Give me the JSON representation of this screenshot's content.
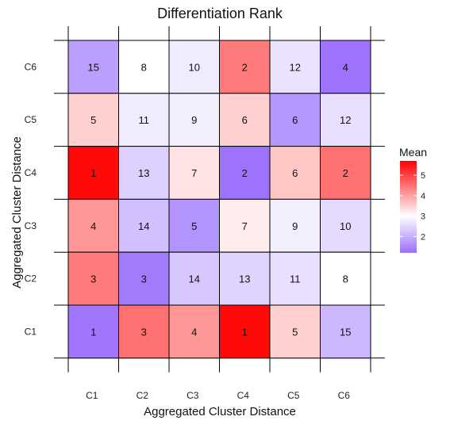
{
  "chart_data": {
    "type": "heatmap",
    "title": "Differentiation Rank",
    "xlabel": "Aggregated Cluster Distance",
    "ylabel": "Aggregated Cluster Distance",
    "x_categories": [
      "C1",
      "C2",
      "C3",
      "C4",
      "C5",
      "C6"
    ],
    "y_categories": [
      "C1",
      "C2",
      "C3",
      "C4",
      "C5",
      "C6"
    ],
    "cells": [
      {
        "x": "C1",
        "y": "C6",
        "label": "15",
        "mean": 1.8
      },
      {
        "x": "C2",
        "y": "C6",
        "label": "8",
        "mean": 3.0
      },
      {
        "x": "C3",
        "y": "C6",
        "label": "10",
        "mean": 2.75
      },
      {
        "x": "C4",
        "y": "C6",
        "label": "2",
        "mean": 4.4
      },
      {
        "x": "C5",
        "y": "C6",
        "label": "12",
        "mean": 2.65
      },
      {
        "x": "C6",
        "y": "C6",
        "label": "4",
        "mean": 1.25
      },
      {
        "x": "C1",
        "y": "C5",
        "label": "5",
        "mean": 3.5
      },
      {
        "x": "C2",
        "y": "C5",
        "label": "11",
        "mean": 2.75
      },
      {
        "x": "C3",
        "y": "C5",
        "label": "9",
        "mean": 2.8
      },
      {
        "x": "C4",
        "y": "C5",
        "label": "6",
        "mean": 3.5
      },
      {
        "x": "C5",
        "y": "C5",
        "label": "6",
        "mean": 1.7
      },
      {
        "x": "C6",
        "y": "C5",
        "label": "12",
        "mean": 2.6
      },
      {
        "x": "C1",
        "y": "C4",
        "label": "1",
        "mean": 5.6
      },
      {
        "x": "C2",
        "y": "C4",
        "label": "13",
        "mean": 2.4
      },
      {
        "x": "C3",
        "y": "C4",
        "label": "7",
        "mean": 3.3
      },
      {
        "x": "C4",
        "y": "C4",
        "label": "2",
        "mean": 1.25
      },
      {
        "x": "C5",
        "y": "C4",
        "label": "6",
        "mean": 3.6
      },
      {
        "x": "C6",
        "y": "C4",
        "label": "2",
        "mean": 4.5
      },
      {
        "x": "C1",
        "y": "C3",
        "label": "4",
        "mean": 4.1
      },
      {
        "x": "C2",
        "y": "C3",
        "label": "14",
        "mean": 2.2
      },
      {
        "x": "C3",
        "y": "C3",
        "label": "5",
        "mean": 1.65
      },
      {
        "x": "C4",
        "y": "C3",
        "label": "7",
        "mean": 3.2
      },
      {
        "x": "C5",
        "y": "C3",
        "label": "9",
        "mean": 2.8
      },
      {
        "x": "C6",
        "y": "C3",
        "label": "10",
        "mean": 2.55
      },
      {
        "x": "C1",
        "y": "C2",
        "label": "3",
        "mean": 4.4
      },
      {
        "x": "C2",
        "y": "C2",
        "label": "3",
        "mean": 1.35
      },
      {
        "x": "C3",
        "y": "C2",
        "label": "14",
        "mean": 2.3
      },
      {
        "x": "C4",
        "y": "C2",
        "label": "13",
        "mean": 2.45
      },
      {
        "x": "C5",
        "y": "C2",
        "label": "11",
        "mean": 2.6
      },
      {
        "x": "C6",
        "y": "C2",
        "label": "8",
        "mean": 3.0
      },
      {
        "x": "C1",
        "y": "C1",
        "label": "1",
        "mean": 1.3
      },
      {
        "x": "C2",
        "y": "C1",
        "label": "3",
        "mean": 4.5
      },
      {
        "x": "C3",
        "y": "C1",
        "label": "4",
        "mean": 4.1
      },
      {
        "x": "C4",
        "y": "C1",
        "label": "1",
        "mean": 5.6
      },
      {
        "x": "C5",
        "y": "C1",
        "label": "5",
        "mean": 3.5
      },
      {
        "x": "C6",
        "y": "C1",
        "label": "15",
        "mean": 2.1
      }
    ],
    "legend": {
      "title": "Mean",
      "ticks": [
        2,
        3,
        4,
        5
      ],
      "range": [
        1.2,
        5.7
      ],
      "colors": {
        "low": "#9a6ffc",
        "mid": "#ffffff",
        "high": "#ff0000"
      }
    },
    "grid": true
  }
}
